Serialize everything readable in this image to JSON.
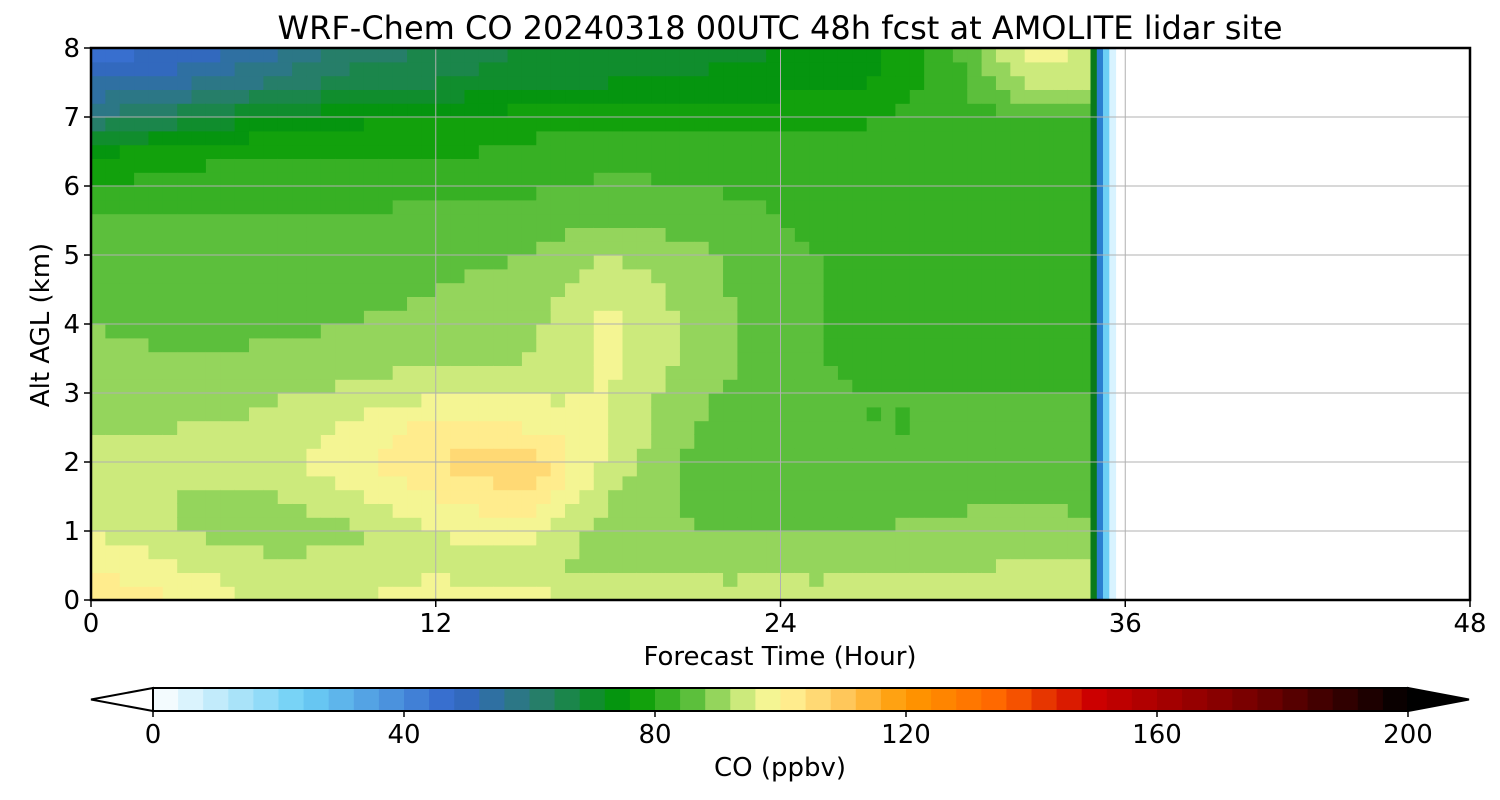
{
  "chart_data": {
    "type": "heatmap",
    "title": "WRF-Chem CO  20240318 00UTC 48h fcst at AMOLITE lidar site",
    "xlabel": "Forecast Time (Hour)",
    "ylabel": "Alt AGL (km)",
    "xlim": [
      0,
      48
    ],
    "ylim": [
      0,
      8
    ],
    "x_ticks": [
      0,
      12,
      24,
      36,
      48
    ],
    "y_ticks": [
      0,
      1,
      2,
      3,
      4,
      5,
      6,
      7,
      8
    ],
    "grid": true,
    "data_end_hour": 35,
    "x": [
      0,
      3,
      6,
      9,
      12,
      15,
      18,
      21,
      24,
      27,
      30,
      33,
      34.5
    ],
    "y": [
      0,
      0.5,
      1,
      1.5,
      2,
      2.5,
      3,
      3.5,
      4,
      4.5,
      5,
      5.5,
      6,
      6.5,
      7,
      7.5,
      8
    ],
    "values": [
      [
        104,
        100,
        95,
        96,
        98,
        97,
        96,
        95,
        95,
        95,
        95,
        96,
        95
      ],
      [
        100,
        96,
        93,
        93,
        95,
        94,
        90,
        90,
        90,
        90,
        91,
        93,
        92
      ],
      [
        96,
        92,
        90,
        91,
        96,
        98,
        90,
        88,
        88,
        88,
        89,
        90,
        89
      ],
      [
        94,
        92,
        91,
        95,
        100,
        104,
        92,
        87,
        86,
        86,
        87,
        88,
        87
      ],
      [
        93,
        93,
        94,
        99,
        104,
        108,
        95,
        87,
        85,
        84,
        85,
        86,
        86
      ],
      [
        92,
        92,
        93,
        97,
        102,
        100,
        96,
        88,
        85,
        84,
        84,
        85,
        85
      ],
      [
        91,
        90,
        91,
        93,
        95,
        95,
        96,
        89,
        85,
        84,
        84,
        84,
        84
      ],
      [
        90,
        88,
        89,
        90,
        91,
        92,
        97,
        91,
        85,
        83,
        83,
        83,
        83
      ],
      [
        88,
        86,
        87,
        88,
        89,
        90,
        97,
        91,
        85,
        83,
        82,
        83,
        83
      ],
      [
        87,
        86,
        87,
        87,
        88,
        89,
        95,
        90,
        85,
        83,
        82,
        82,
        82
      ],
      [
        86,
        87,
        88,
        87,
        87,
        88,
        92,
        89,
        85,
        83,
        82,
        82,
        82
      ],
      [
        84,
        85,
        85,
        85,
        85,
        86,
        88,
        86,
        84,
        82,
        81,
        81,
        81
      ],
      [
        80,
        82,
        82,
        82,
        83,
        83,
        85,
        84,
        83,
        82,
        81,
        80,
        80
      ],
      [
        75,
        78,
        80,
        79,
        79,
        81,
        82,
        82,
        81,
        80,
        80,
        80,
        80
      ],
      [
        60,
        66,
        72,
        75,
        76,
        78,
        79,
        79,
        79,
        80,
        82,
        84,
        84
      ],
      [
        52,
        55,
        60,
        66,
        68,
        70,
        72,
        73,
        74,
        76,
        82,
        94,
        92
      ],
      [
        45,
        48,
        54,
        62,
        64,
        68,
        70,
        70,
        72,
        74,
        84,
        100,
        96
      ]
    ],
    "colorbar": {
      "label": "CO  (ppbv)",
      "min": 0,
      "max": 200,
      "ticks": [
        0,
        40,
        80,
        120,
        160,
        200
      ],
      "extend": "both",
      "stops": [
        {
          "v": 0,
          "c": "#ffffff"
        },
        {
          "v": 24,
          "c": "#6ccff5"
        },
        {
          "v": 48,
          "c": "#3366cc"
        },
        {
          "v": 60,
          "c": "#2b7a78"
        },
        {
          "v": 76,
          "c": "#009900"
        },
        {
          "v": 86,
          "c": "#5cbf3c"
        },
        {
          "v": 96,
          "c": "#e8f58c"
        },
        {
          "v": 100,
          "c": "#fff59a"
        },
        {
          "v": 110,
          "c": "#ffc75a"
        },
        {
          "v": 120,
          "c": "#ff9900"
        },
        {
          "v": 135,
          "c": "#ff6600"
        },
        {
          "v": 150,
          "c": "#cc0000"
        },
        {
          "v": 175,
          "c": "#770000"
        },
        {
          "v": 200,
          "c": "#000000"
        }
      ]
    }
  }
}
